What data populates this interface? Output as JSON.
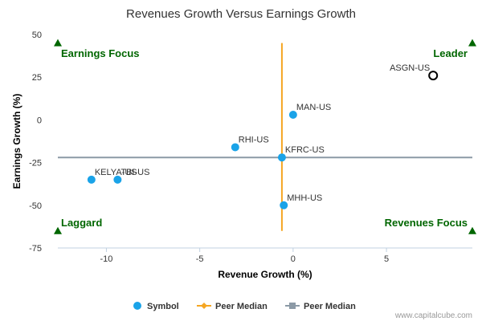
{
  "chart_data": {
    "type": "scatter",
    "title": "Revenues Growth Versus Earnings Growth",
    "xlabel": "Revenue Growth (%)",
    "ylabel": "Earnings Growth (%)",
    "xlim": [
      -12.6,
      9.6
    ],
    "ylim": [
      -75,
      50
    ],
    "xticks": [
      -10,
      -5,
      0,
      5
    ],
    "yticks": [
      50,
      25,
      0,
      -25,
      -50,
      -75
    ],
    "grid": false,
    "points": [
      {
        "label": "ASGN-US",
        "x": 7.5,
        "y": 26,
        "highlight": true
      },
      {
        "label": "MAN-US",
        "x": 0.0,
        "y": 3
      },
      {
        "label": "RHI-US",
        "x": -3.1,
        "y": -16
      },
      {
        "label": "KFRC-US",
        "x": -0.6,
        "y": -22
      },
      {
        "label": "MHH-US",
        "x": -0.5,
        "y": -50
      },
      {
        "label": "KELYA-US",
        "x": -10.8,
        "y": -35
      },
      {
        "label": "TBI-US",
        "x": -9.4,
        "y": -35
      }
    ],
    "peer_median": {
      "x": -0.6,
      "y": -22
    },
    "quadrants": {
      "top_left": "Earnings Focus",
      "top_right": "Leader",
      "bottom_left": "Laggard",
      "bottom_right": "Revenues Focus"
    },
    "legend": {
      "placement": "bottom-center",
      "items": [
        {
          "name": "Symbol",
          "kind": "dot"
        },
        {
          "name": "Peer Median",
          "kind": "vline"
        },
        {
          "name": "Peer Median",
          "kind": "hline"
        }
      ]
    },
    "credit": "www.capitalcube.com",
    "colors": {
      "point": "#1aa3e8",
      "highlight_stroke": "#000000",
      "vertical_median": "#f5a623",
      "horizontal_median": "#8c9aa6",
      "quadrant_text": "#006600",
      "marker": "#006600"
    }
  }
}
